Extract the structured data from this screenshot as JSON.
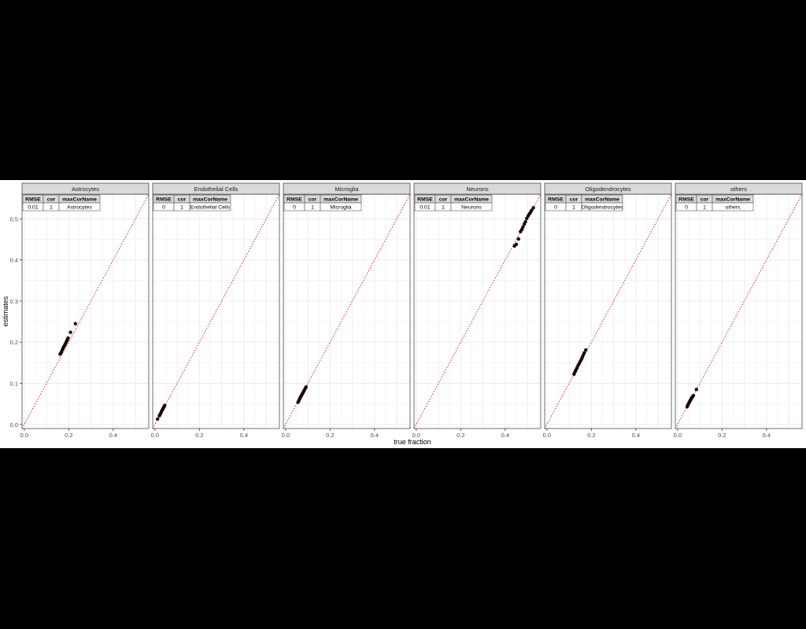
{
  "chart_data": {
    "type": "scatter",
    "xlabel": "true fraction",
    "ylabel": "estimates",
    "xlim": [
      -0.01,
      0.56
    ],
    "ylim": [
      -0.01,
      0.56
    ],
    "x_ticks": [
      0.0,
      0.2,
      0.4
    ],
    "x_tick_labels": [
      "0.0",
      "0.2",
      "0.4"
    ],
    "y_ticks": [
      0.0,
      0.1,
      0.2,
      0.3,
      0.4,
      0.5
    ],
    "y_tick_labels": [
      "0.0",
      "0.1",
      "0.2",
      "0.3",
      "0.4",
      "0.5"
    ],
    "grid": true,
    "reference_line": {
      "slope": 1,
      "intercept": 0,
      "style": "dotted",
      "color": "#e8231f"
    },
    "point_color": "#1a0000",
    "table_headers": [
      "RMSE",
      "cor",
      "maxCorName"
    ],
    "panels": [
      {
        "title": "Astrocytes",
        "stats": {
          "RMSE": "0.01",
          "cor": "1",
          "maxCorName": "Astrocytes"
        },
        "points": [
          {
            "x": 0.161,
            "y": 0.171
          },
          {
            "x": 0.166,
            "y": 0.175
          },
          {
            "x": 0.17,
            "y": 0.18
          },
          {
            "x": 0.174,
            "y": 0.185
          },
          {
            "x": 0.178,
            "y": 0.189
          },
          {
            "x": 0.182,
            "y": 0.193
          },
          {
            "x": 0.186,
            "y": 0.197
          },
          {
            "x": 0.19,
            "y": 0.202
          },
          {
            "x": 0.194,
            "y": 0.206
          },
          {
            "x": 0.197,
            "y": 0.21
          },
          {
            "x": 0.208,
            "y": 0.224
          },
          {
            "x": 0.23,
            "y": 0.245
          }
        ]
      },
      {
        "title": "Endothelial Cells",
        "stats": {
          "RMSE": "0",
          "cor": "1",
          "maxCorName": "Endothelial Cells"
        },
        "points": [
          {
            "x": 0.012,
            "y": 0.013
          },
          {
            "x": 0.02,
            "y": 0.021
          },
          {
            "x": 0.024,
            "y": 0.025
          },
          {
            "x": 0.027,
            "y": 0.028
          },
          {
            "x": 0.03,
            "y": 0.032
          },
          {
            "x": 0.033,
            "y": 0.035
          },
          {
            "x": 0.036,
            "y": 0.038
          },
          {
            "x": 0.039,
            "y": 0.041
          },
          {
            "x": 0.042,
            "y": 0.044
          },
          {
            "x": 0.044,
            "y": 0.046
          }
        ]
      },
      {
        "title": "Microglia",
        "stats": {
          "RMSE": "0",
          "cor": "1",
          "maxCorName": "Microglia"
        },
        "points": [
          {
            "x": 0.056,
            "y": 0.054
          },
          {
            "x": 0.06,
            "y": 0.058
          },
          {
            "x": 0.063,
            "y": 0.062
          },
          {
            "x": 0.066,
            "y": 0.065
          },
          {
            "x": 0.069,
            "y": 0.068
          },
          {
            "x": 0.072,
            "y": 0.071
          },
          {
            "x": 0.075,
            "y": 0.074
          },
          {
            "x": 0.078,
            "y": 0.077
          },
          {
            "x": 0.081,
            "y": 0.08
          },
          {
            "x": 0.084,
            "y": 0.083
          },
          {
            "x": 0.088,
            "y": 0.087
          },
          {
            "x": 0.092,
            "y": 0.091
          }
        ]
      },
      {
        "title": "Neurons",
        "stats": {
          "RMSE": "0.01",
          "cor": "1",
          "maxCorName": "Neurons"
        },
        "points": [
          {
            "x": 0.442,
            "y": 0.434
          },
          {
            "x": 0.45,
            "y": 0.438
          },
          {
            "x": 0.46,
            "y": 0.451
          },
          {
            "x": 0.469,
            "y": 0.469
          },
          {
            "x": 0.475,
            "y": 0.474
          },
          {
            "x": 0.48,
            "y": 0.48
          },
          {
            "x": 0.486,
            "y": 0.487
          },
          {
            "x": 0.491,
            "y": 0.493
          },
          {
            "x": 0.497,
            "y": 0.501
          },
          {
            "x": 0.503,
            "y": 0.507
          },
          {
            "x": 0.509,
            "y": 0.512
          },
          {
            "x": 0.514,
            "y": 0.516
          },
          {
            "x": 0.519,
            "y": 0.521
          },
          {
            "x": 0.527,
            "y": 0.527
          }
        ]
      },
      {
        "title": "Oligodendrocytes",
        "stats": {
          "RMSE": "0",
          "cor": "1",
          "maxCorName": "Oligodendrocytes"
        },
        "points": [
          {
            "x": 0.122,
            "y": 0.122
          },
          {
            "x": 0.126,
            "y": 0.127
          },
          {
            "x": 0.13,
            "y": 0.132
          },
          {
            "x": 0.135,
            "y": 0.137
          },
          {
            "x": 0.14,
            "y": 0.143
          },
          {
            "x": 0.145,
            "y": 0.148
          },
          {
            "x": 0.15,
            "y": 0.153
          },
          {
            "x": 0.155,
            "y": 0.158
          },
          {
            "x": 0.159,
            "y": 0.163
          },
          {
            "x": 0.163,
            "y": 0.168
          },
          {
            "x": 0.168,
            "y": 0.174
          },
          {
            "x": 0.175,
            "y": 0.181
          }
        ]
      },
      {
        "title": "others",
        "stats": {
          "RMSE": "0",
          "cor": "1",
          "maxCorName": "others"
        },
        "points": [
          {
            "x": 0.043,
            "y": 0.043
          },
          {
            "x": 0.046,
            "y": 0.047
          },
          {
            "x": 0.05,
            "y": 0.051
          },
          {
            "x": 0.053,
            "y": 0.054
          },
          {
            "x": 0.056,
            "y": 0.057
          },
          {
            "x": 0.059,
            "y": 0.06
          },
          {
            "x": 0.062,
            "y": 0.063
          },
          {
            "x": 0.065,
            "y": 0.066
          },
          {
            "x": 0.068,
            "y": 0.068
          },
          {
            "x": 0.071,
            "y": 0.07
          },
          {
            "x": 0.085,
            "y": 0.085
          }
        ]
      }
    ]
  }
}
